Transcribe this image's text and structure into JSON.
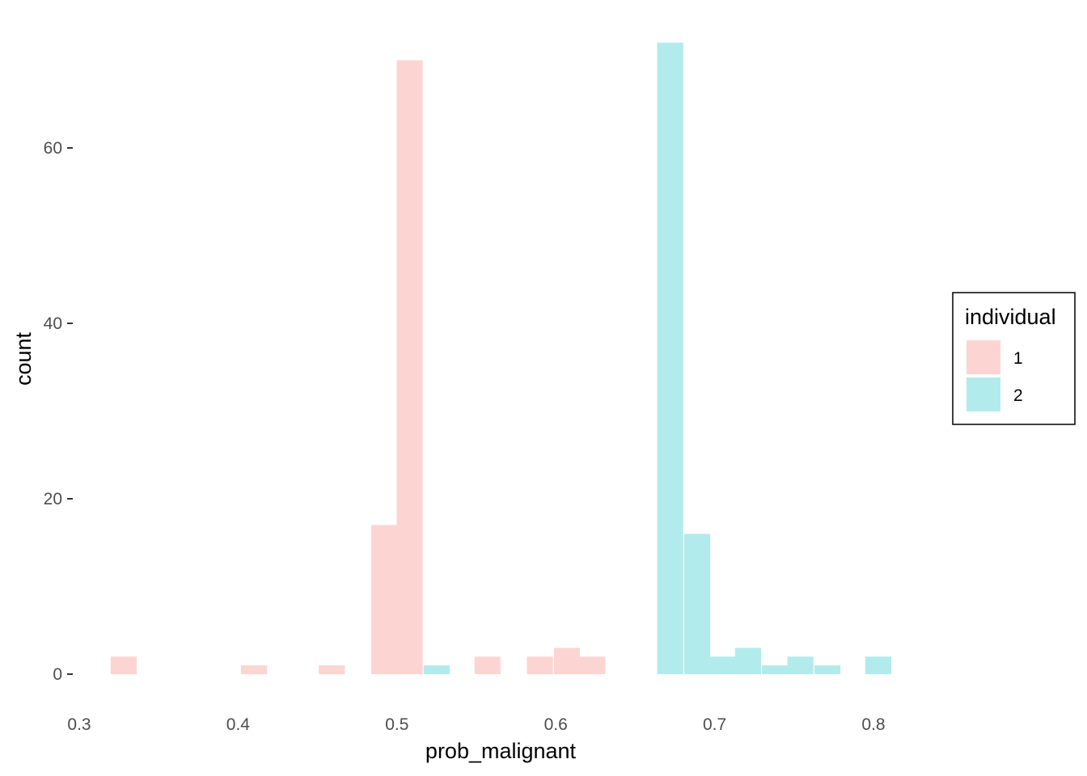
{
  "chart_data": {
    "type": "bar",
    "subtype": "histogram",
    "xlabel": "prob_malignant",
    "ylabel": "count",
    "xlim": [
      0.3,
      0.8
    ],
    "ylim": [
      0,
      70
    ],
    "x_ticks": [
      "0.3",
      "0.4",
      "0.5",
      "0.6",
      "0.7",
      "0.8"
    ],
    "y_ticks": [
      "0",
      "20",
      "40",
      "60"
    ],
    "grid": false,
    "legend": {
      "title": "individual",
      "placement": "right"
    },
    "bin_width": 0.0164,
    "series": [
      {
        "name": "1",
        "color": "#fcd5d3",
        "bins": [
          {
            "x": 0.328,
            "count": 2
          },
          {
            "x": 0.41,
            "count": 1
          },
          {
            "x": 0.459,
            "count": 1
          },
          {
            "x": 0.492,
            "count": 17
          },
          {
            "x": 0.508,
            "count": 70
          },
          {
            "x": 0.557,
            "count": 2
          },
          {
            "x": 0.59,
            "count": 2
          },
          {
            "x": 0.607,
            "count": 3
          },
          {
            "x": 0.623,
            "count": 2
          }
        ]
      },
      {
        "name": "2",
        "color": "#b2ebeb",
        "bins": [
          {
            "x": 0.525,
            "count": 1
          },
          {
            "x": 0.672,
            "count": 72
          },
          {
            "x": 0.689,
            "count": 16
          },
          {
            "x": 0.705,
            "count": 2
          },
          {
            "x": 0.721,
            "count": 3
          },
          {
            "x": 0.738,
            "count": 1
          },
          {
            "x": 0.754,
            "count": 2
          },
          {
            "x": 0.771,
            "count": 1
          },
          {
            "x": 0.803,
            "count": 2
          }
        ]
      }
    ]
  }
}
